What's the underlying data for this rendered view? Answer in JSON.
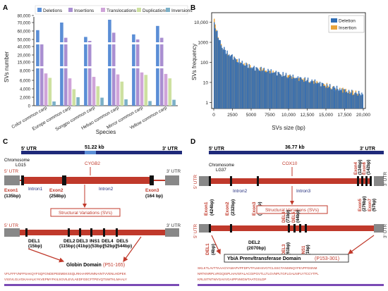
{
  "panelA": {
    "letter": "A",
    "chart_data": {
      "type": "bar",
      "ylabel": "SVs number",
      "xlabel": "Species",
      "categories": [
        "Color common carp",
        "Europe common carp",
        "Songpu common carp",
        "Hebao common carp",
        "Mirror common carp",
        "Yellow common carp"
      ],
      "yticks": [
        "0",
        "2,000",
        "4,000",
        "6,000",
        "8,000",
        "15,000",
        "20,000",
        "40,000",
        "50,000",
        "60,000",
        "70,000",
        "80,000"
      ],
      "legend_position": "top",
      "series": [
        {
          "name": "Deletions",
          "color": "#5b8ed6",
          "values": [
            61000,
            70000,
            53000,
            74000,
            56000,
            66000
          ]
        },
        {
          "name": "Insertions",
          "color": "#a98fd1",
          "values": [
            44000,
            52000,
            48000,
            58000,
            50000,
            52000
          ]
        },
        {
          "name": "Translocations",
          "color": "#cfa4d9",
          "values": [
            7400,
            6400,
            6700,
            7200,
            7600,
            7300
          ]
        },
        {
          "name": "Duplications",
          "color": "#cde0a0",
          "values": [
            6500,
            3900,
            4600,
            5700,
            7100,
            6400
          ]
        },
        {
          "name": "Inversions",
          "color": "#7cb0c7",
          "values": [
            1000,
            2000,
            1900,
            1500,
            1100,
            1400
          ]
        }
      ]
    }
  },
  "panelB": {
    "letter": "B",
    "chart_data": {
      "type": "bar",
      "xlabel": "SVs size (bp)",
      "ylabel": "SVs frequency",
      "yscale": "log",
      "xticks": [
        "0",
        "2500",
        "5000",
        "7500",
        "10,000",
        "12,500",
        "15,000",
        "17,500",
        "20,000"
      ],
      "yticks": [
        "1",
        "10",
        "100",
        "1000",
        "10,000"
      ],
      "legend_position": "top-right",
      "series": [
        {
          "name": "Deletion",
          "color": "#2f6db5"
        },
        {
          "name": "Insertion",
          "color": "#e8a33a"
        }
      ],
      "x": [
        0,
        500,
        1000,
        1500,
        2000,
        2500,
        3000,
        4000,
        5000,
        6000,
        7500,
        9000,
        10000,
        11000,
        12500,
        14000,
        15000,
        16000,
        17500,
        19000,
        20000
      ],
      "deletion": [
        10000,
        2200,
        700,
        400,
        260,
        200,
        140,
        90,
        60,
        50,
        38,
        28,
        22,
        18,
        14,
        10,
        7,
        6,
        4,
        3,
        3
      ],
      "insertion": [
        15000,
        1600,
        560,
        330,
        230,
        170,
        120,
        78,
        55,
        45,
        34,
        25,
        20,
        16,
        12,
        9,
        8,
        5,
        4,
        3,
        2
      ]
    }
  },
  "panelC": {
    "letter": "C",
    "utr5": "5' UTR",
    "utr3": "3' UTR",
    "length": "51.22 kb",
    "chrom1": "Chromosome",
    "chrom2": "LG15",
    "gene": "CYGB2",
    "row_utr5": "5' UTR",
    "row_utr3": "3' UTR",
    "exon1": "Exon1",
    "exon1bp": "(135bp)",
    "intron1": "Intron1",
    "exon2": "Exon2",
    "exon2bp": "(258bp)",
    "intron2": "Intron2",
    "exon3": "Exon3",
    "exon3bp": "(164 bp)",
    "sv_box": "Structural Variations (SVs)",
    "sv_utr5": "5' UTR",
    "sv_utr3": "3' UTR",
    "del1": "DEL1",
    "del1bp": "(15bp)",
    "del2": "DEL2",
    "del2bp": "(115bp)",
    "del3": "DEL3",
    "del3bp": "(41bp)",
    "ins1": "INS1",
    "ins1bp": "(53bp)",
    "del4": "DEL4",
    "del4bp": "(52bp)",
    "del5": "DEL5",
    "del5bp": "(544bp)",
    "domain": "Globin Domain",
    "domain_range": "(P51-165)",
    "seq1": "VFLFFFVNFPSAKQYFSQFGNDEPEEMEKSSQLRKHARRVMNAINTVVENLHDPEK",
    "seq2": "VSSVLGLVGKAHALKYKVEPMYFKILSGVILEVLAEDFGECFTPEVQTSWTKLMAALY"
  },
  "panelD": {
    "letter": "D",
    "utr5": "5' UTR",
    "utr3": "3' UTR",
    "length": "36.77 kb",
    "gene": "COX10",
    "chrom1": "Chromosome",
    "chrom2": "LG37",
    "row_utr5": "5' UTR",
    "row_utr3": "3' UTR",
    "exon1": "Exon1",
    "exon1bp": "(424bp)",
    "exon2": "Exon2",
    "exon2bp": "(232bp)",
    "intron2": "Intron2",
    "exon3": "Exon3",
    "exon3bp": "(70bp)",
    "intron3": "Intron3",
    "exon4": "Exon4",
    "exon4bp": "(124bp)",
    "exon5": "Exon5",
    "exon5bp": "(276bp)",
    "exon6": "Exon6",
    "exon6bp": "(142bp)",
    "exon7": "Exon7",
    "exon7bp": "(57bp)",
    "sv_box": "Structural Variations (SVs)",
    "sv_utr5": "5' UTR",
    "sv_utr3": "3' UTR",
    "del1": "DEL1",
    "del1bp": "(4bp)",
    "del2": "DEL2",
    "del2bp": "(2070bp)",
    "del3": "DEL3",
    "del3bp": "(61bp)",
    "del4": "DEL4",
    "del4bp": "(71bp)",
    "del5": "DEL5",
    "del5bp": "(44bp)",
    "ins1": "INS1",
    "ins1bp": "(1bp)",
    "domain": "YbiA Prenvltransferase Domain",
    "domain_range": "(P153-301)",
    "seq1": "SKLKTLAVTTAAAGYAMAPVPFDPVTFLMASVGTCLSSCTANSINQYFEVPFDSNM",
    "seq2": "NRTKNRPLVRGQISPLHAVSFALACGIPGVTLLTLGVNPLTGFLGALNIFLYTCCYTPL",
    "seq3": "KRLSITNTWVGAVVGAIPPVMGWTAATGSLDP"
  }
}
